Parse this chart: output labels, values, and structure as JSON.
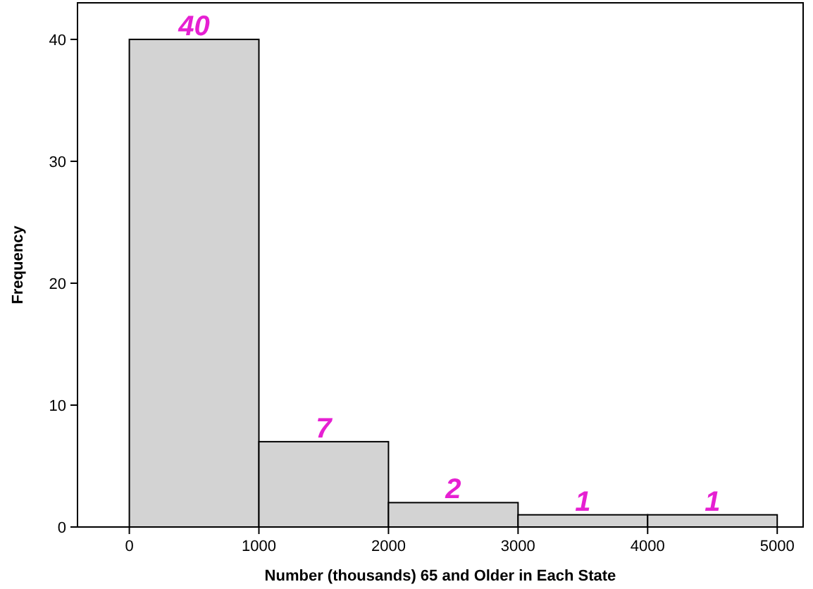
{
  "chart_data": {
    "type": "histogram",
    "xlabel": "Number (thousands) 65 and Older in Each State",
    "ylabel": "Frequency",
    "bins": [
      0,
      1000,
      2000,
      3000,
      4000,
      5000
    ],
    "values": [
      40,
      7,
      2,
      1,
      1
    ],
    "color": "#d3d3d3",
    "xlim": [
      -400,
      5200
    ],
    "xticks": [
      0,
      1000,
      2000,
      3000,
      4000,
      5000
    ],
    "ylim": [
      0,
      43
    ],
    "yticks": [
      0,
      10,
      20,
      30,
      40
    ],
    "data_labels": true,
    "grid": false
  }
}
